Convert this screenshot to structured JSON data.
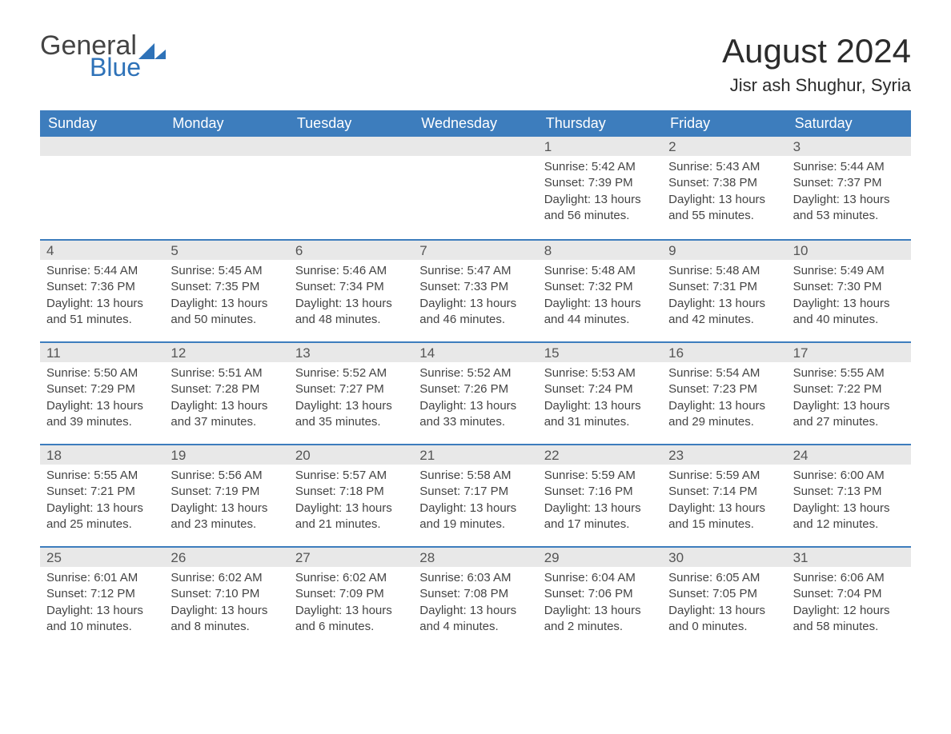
{
  "brand": {
    "word1": "General",
    "word2": "Blue"
  },
  "title": {
    "month": "August 2024",
    "location": "Jisr ash Shughur, Syria"
  },
  "colors": {
    "header_bg": "#3d7dbd",
    "header_text": "#ffffff",
    "row_border": "#3d7dbd",
    "daynum_bg": "#e8e8e8",
    "body_text": "#444444",
    "brand_blue": "#2e72b8",
    "brand_gray": "#444444",
    "page_bg": "#ffffff"
  },
  "weekdays": [
    "Sunday",
    "Monday",
    "Tuesday",
    "Wednesday",
    "Thursday",
    "Friday",
    "Saturday"
  ],
  "weeks": [
    [
      {
        "n": "",
        "sunrise": "",
        "sunset": "",
        "daylight": ""
      },
      {
        "n": "",
        "sunrise": "",
        "sunset": "",
        "daylight": ""
      },
      {
        "n": "",
        "sunrise": "",
        "sunset": "",
        "daylight": ""
      },
      {
        "n": "",
        "sunrise": "",
        "sunset": "",
        "daylight": ""
      },
      {
        "n": "1",
        "sunrise": "Sunrise: 5:42 AM",
        "sunset": "Sunset: 7:39 PM",
        "daylight": "Daylight: 13 hours and 56 minutes."
      },
      {
        "n": "2",
        "sunrise": "Sunrise: 5:43 AM",
        "sunset": "Sunset: 7:38 PM",
        "daylight": "Daylight: 13 hours and 55 minutes."
      },
      {
        "n": "3",
        "sunrise": "Sunrise: 5:44 AM",
        "sunset": "Sunset: 7:37 PM",
        "daylight": "Daylight: 13 hours and 53 minutes."
      }
    ],
    [
      {
        "n": "4",
        "sunrise": "Sunrise: 5:44 AM",
        "sunset": "Sunset: 7:36 PM",
        "daylight": "Daylight: 13 hours and 51 minutes."
      },
      {
        "n": "5",
        "sunrise": "Sunrise: 5:45 AM",
        "sunset": "Sunset: 7:35 PM",
        "daylight": "Daylight: 13 hours and 50 minutes."
      },
      {
        "n": "6",
        "sunrise": "Sunrise: 5:46 AM",
        "sunset": "Sunset: 7:34 PM",
        "daylight": "Daylight: 13 hours and 48 minutes."
      },
      {
        "n": "7",
        "sunrise": "Sunrise: 5:47 AM",
        "sunset": "Sunset: 7:33 PM",
        "daylight": "Daylight: 13 hours and 46 minutes."
      },
      {
        "n": "8",
        "sunrise": "Sunrise: 5:48 AM",
        "sunset": "Sunset: 7:32 PM",
        "daylight": "Daylight: 13 hours and 44 minutes."
      },
      {
        "n": "9",
        "sunrise": "Sunrise: 5:48 AM",
        "sunset": "Sunset: 7:31 PM",
        "daylight": "Daylight: 13 hours and 42 minutes."
      },
      {
        "n": "10",
        "sunrise": "Sunrise: 5:49 AM",
        "sunset": "Sunset: 7:30 PM",
        "daylight": "Daylight: 13 hours and 40 minutes."
      }
    ],
    [
      {
        "n": "11",
        "sunrise": "Sunrise: 5:50 AM",
        "sunset": "Sunset: 7:29 PM",
        "daylight": "Daylight: 13 hours and 39 minutes."
      },
      {
        "n": "12",
        "sunrise": "Sunrise: 5:51 AM",
        "sunset": "Sunset: 7:28 PM",
        "daylight": "Daylight: 13 hours and 37 minutes."
      },
      {
        "n": "13",
        "sunrise": "Sunrise: 5:52 AM",
        "sunset": "Sunset: 7:27 PM",
        "daylight": "Daylight: 13 hours and 35 minutes."
      },
      {
        "n": "14",
        "sunrise": "Sunrise: 5:52 AM",
        "sunset": "Sunset: 7:26 PM",
        "daylight": "Daylight: 13 hours and 33 minutes."
      },
      {
        "n": "15",
        "sunrise": "Sunrise: 5:53 AM",
        "sunset": "Sunset: 7:24 PM",
        "daylight": "Daylight: 13 hours and 31 minutes."
      },
      {
        "n": "16",
        "sunrise": "Sunrise: 5:54 AM",
        "sunset": "Sunset: 7:23 PM",
        "daylight": "Daylight: 13 hours and 29 minutes."
      },
      {
        "n": "17",
        "sunrise": "Sunrise: 5:55 AM",
        "sunset": "Sunset: 7:22 PM",
        "daylight": "Daylight: 13 hours and 27 minutes."
      }
    ],
    [
      {
        "n": "18",
        "sunrise": "Sunrise: 5:55 AM",
        "sunset": "Sunset: 7:21 PM",
        "daylight": "Daylight: 13 hours and 25 minutes."
      },
      {
        "n": "19",
        "sunrise": "Sunrise: 5:56 AM",
        "sunset": "Sunset: 7:19 PM",
        "daylight": "Daylight: 13 hours and 23 minutes."
      },
      {
        "n": "20",
        "sunrise": "Sunrise: 5:57 AM",
        "sunset": "Sunset: 7:18 PM",
        "daylight": "Daylight: 13 hours and 21 minutes."
      },
      {
        "n": "21",
        "sunrise": "Sunrise: 5:58 AM",
        "sunset": "Sunset: 7:17 PM",
        "daylight": "Daylight: 13 hours and 19 minutes."
      },
      {
        "n": "22",
        "sunrise": "Sunrise: 5:59 AM",
        "sunset": "Sunset: 7:16 PM",
        "daylight": "Daylight: 13 hours and 17 minutes."
      },
      {
        "n": "23",
        "sunrise": "Sunrise: 5:59 AM",
        "sunset": "Sunset: 7:14 PM",
        "daylight": "Daylight: 13 hours and 15 minutes."
      },
      {
        "n": "24",
        "sunrise": "Sunrise: 6:00 AM",
        "sunset": "Sunset: 7:13 PM",
        "daylight": "Daylight: 13 hours and 12 minutes."
      }
    ],
    [
      {
        "n": "25",
        "sunrise": "Sunrise: 6:01 AM",
        "sunset": "Sunset: 7:12 PM",
        "daylight": "Daylight: 13 hours and 10 minutes."
      },
      {
        "n": "26",
        "sunrise": "Sunrise: 6:02 AM",
        "sunset": "Sunset: 7:10 PM",
        "daylight": "Daylight: 13 hours and 8 minutes."
      },
      {
        "n": "27",
        "sunrise": "Sunrise: 6:02 AM",
        "sunset": "Sunset: 7:09 PM",
        "daylight": "Daylight: 13 hours and 6 minutes."
      },
      {
        "n": "28",
        "sunrise": "Sunrise: 6:03 AM",
        "sunset": "Sunset: 7:08 PM",
        "daylight": "Daylight: 13 hours and 4 minutes."
      },
      {
        "n": "29",
        "sunrise": "Sunrise: 6:04 AM",
        "sunset": "Sunset: 7:06 PM",
        "daylight": "Daylight: 13 hours and 2 minutes."
      },
      {
        "n": "30",
        "sunrise": "Sunrise: 6:05 AM",
        "sunset": "Sunset: 7:05 PM",
        "daylight": "Daylight: 13 hours and 0 minutes."
      },
      {
        "n": "31",
        "sunrise": "Sunrise: 6:06 AM",
        "sunset": "Sunset: 7:04 PM",
        "daylight": "Daylight: 12 hours and 58 minutes."
      }
    ]
  ]
}
